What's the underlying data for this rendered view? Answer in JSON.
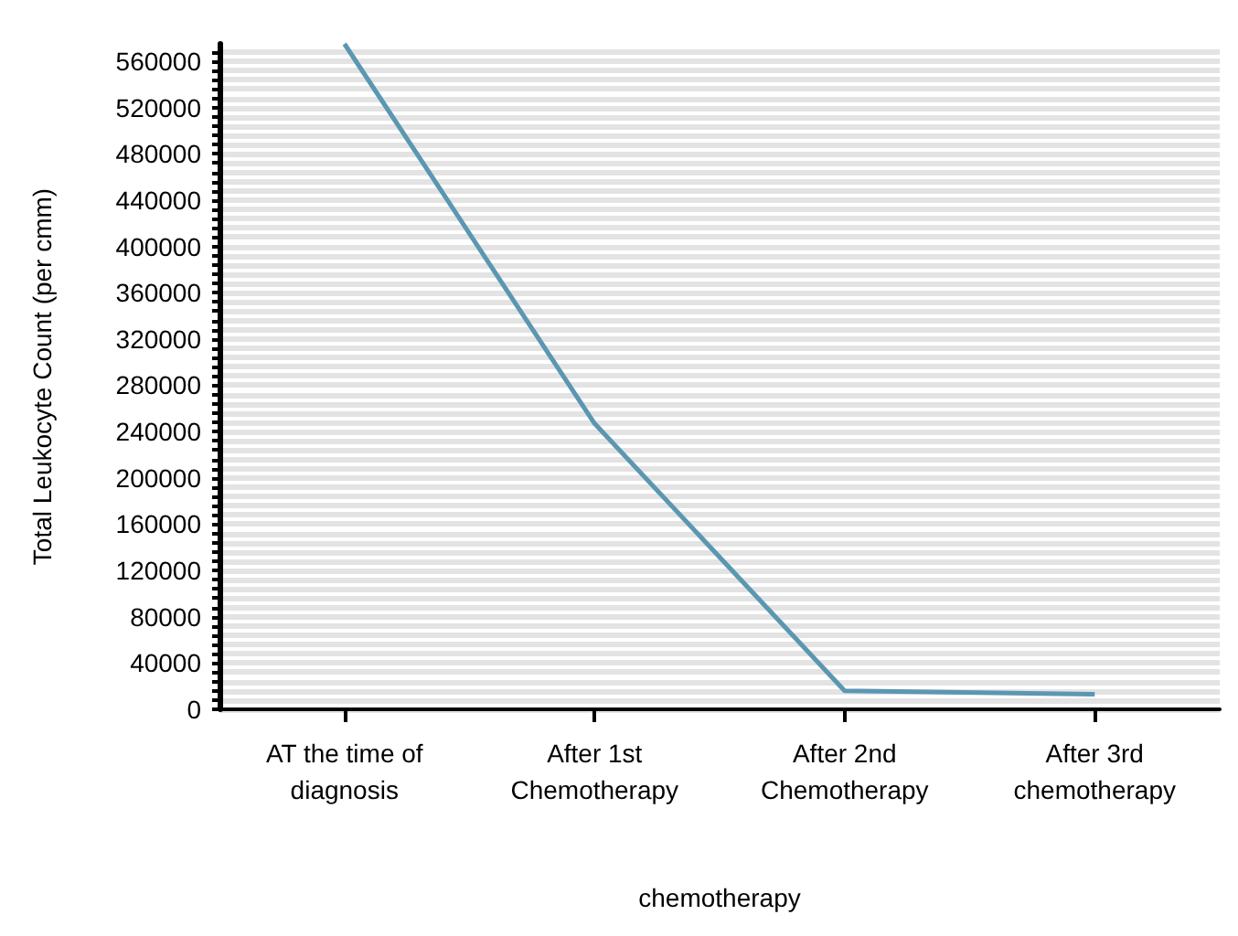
{
  "chart_data": {
    "type": "line",
    "xlabel": "chemotherapy",
    "ylabel": "Total Leukocyte Count (per cmm)",
    "categories": [
      "AT the time of\ndiagnosis",
      "After 1st\nChemotherapy",
      "After 2nd\nChemotherapy",
      "After 3rd\nchemotherapy"
    ],
    "series": [
      {
        "color": "#5b97b1",
        "values": [
          575000,
          247000,
          16000,
          13000
        ]
      }
    ],
    "ylim": [
      0,
      575000
    ],
    "yticks": [
      0,
      40000,
      80000,
      120000,
      160000,
      200000,
      240000,
      280000,
      320000,
      360000,
      400000,
      440000,
      480000,
      520000,
      560000
    ],
    "grid": "y",
    "marker": "none",
    "line_style": "solid"
  }
}
